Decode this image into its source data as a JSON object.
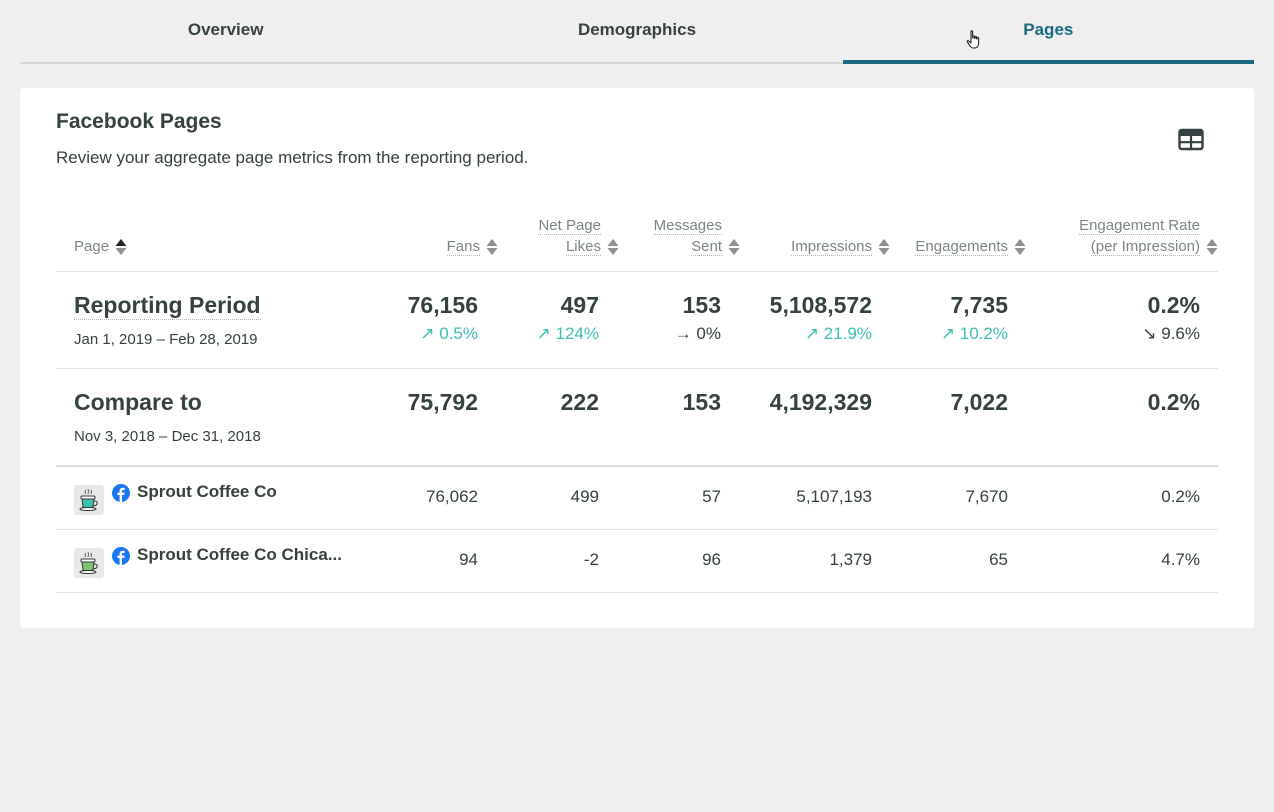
{
  "tabs": [
    {
      "label": "Overview",
      "active": false
    },
    {
      "label": "Demographics",
      "active": false
    },
    {
      "label": "Pages",
      "active": true
    }
  ],
  "card": {
    "title": "Facebook Pages",
    "subtitle": "Review your aggregate page metrics from the reporting period."
  },
  "columns": {
    "page": "Page",
    "fans": "Fans",
    "net_likes_1": "Net Page",
    "net_likes_2": "Likes",
    "messages_1": "Messages",
    "messages_2": "Sent",
    "impressions": "Impressions",
    "engagements": "Engagements",
    "eng_rate_1": "Engagement Rate",
    "eng_rate_2": "(per Impression)"
  },
  "reporting": {
    "label": "Reporting Period",
    "dates": "Jan 1, 2019 – Feb 28, 2019",
    "fans": "76,156",
    "fans_chg": "↗ 0.5%",
    "likes": "497",
    "likes_chg": "↗ 124%",
    "messages": "153",
    "messages_chg": "→ 0%",
    "impressions": "5,108,572",
    "impressions_chg": "↗ 21.9%",
    "engagements": "7,735",
    "engagements_chg": "↗ 10.2%",
    "rate": "0.2%",
    "rate_chg": "↘ 9.6%"
  },
  "compare": {
    "label": "Compare to",
    "dates": "Nov 3, 2018 – Dec 31, 2018",
    "fans": "75,792",
    "likes": "222",
    "messages": "153",
    "impressions": "4,192,329",
    "engagements": "7,022",
    "rate": "0.2%"
  },
  "pages": [
    {
      "name": "Sprout Coffee Co",
      "fans": "76,062",
      "likes": "499",
      "messages": "57",
      "impressions": "5,107,193",
      "engagements": "7,670",
      "rate": "0.2%"
    },
    {
      "name": "Sprout Coffee Co Chica...",
      "fans": "94",
      "likes": "-2",
      "messages": "96",
      "impressions": "1,379",
      "engagements": "65",
      "rate": "4.7%"
    }
  ],
  "colors": {
    "accent": "#1a6b80",
    "positive": "#3dbfb0",
    "text": "#364141",
    "facebook": "#1877f2"
  },
  "icons": [
    "table-view-icon",
    "sort-icon",
    "facebook-icon",
    "coffee-cup-icon",
    "hand-cursor-icon"
  ]
}
